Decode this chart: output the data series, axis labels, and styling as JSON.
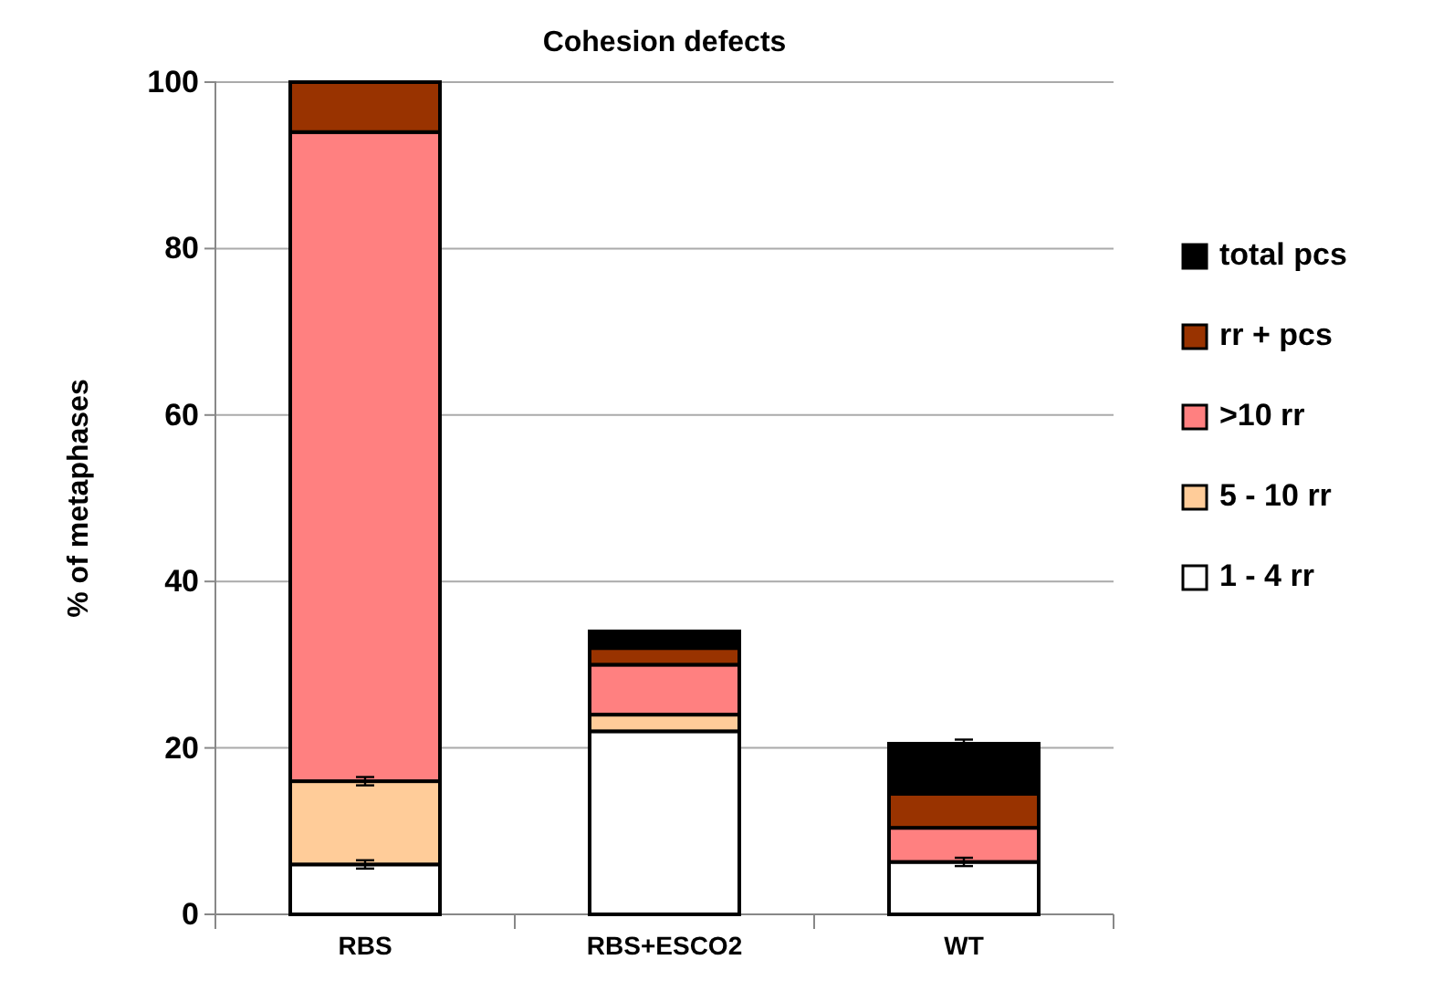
{
  "chart_data": {
    "type": "bar",
    "title": "Cohesion defects",
    "ylabel": "% of metaphases",
    "categories": [
      "RBS",
      "RBS+ESCO2",
      "WT"
    ],
    "stacked": true,
    "ylim": [
      0,
      100
    ],
    "yticks": [
      0,
      20,
      40,
      60,
      80,
      100
    ],
    "grid": "y",
    "legend": "right",
    "series": [
      {
        "name": "1 - 4 rr",
        "color": "#ffffff",
        "values": [
          6,
          22,
          6.3
        ],
        "errors": [
          0.5,
          null,
          0.5
        ]
      },
      {
        "name": "5 - 10 rr",
        "color": "#ffcc99",
        "values": [
          10,
          2,
          0
        ],
        "errors": [
          0.5,
          null,
          null
        ]
      },
      {
        "name": ">10 rr",
        "color": "#ff8080",
        "values": [
          78,
          6,
          4.1
        ]
      },
      {
        "name": "rr + pcs",
        "color": "#993300",
        "values": [
          6,
          2,
          4.1
        ]
      },
      {
        "name": "total pcs",
        "color": "#000000",
        "values": [
          0,
          2,
          6
        ],
        "errors": [
          null,
          null,
          0.5
        ]
      }
    ]
  }
}
